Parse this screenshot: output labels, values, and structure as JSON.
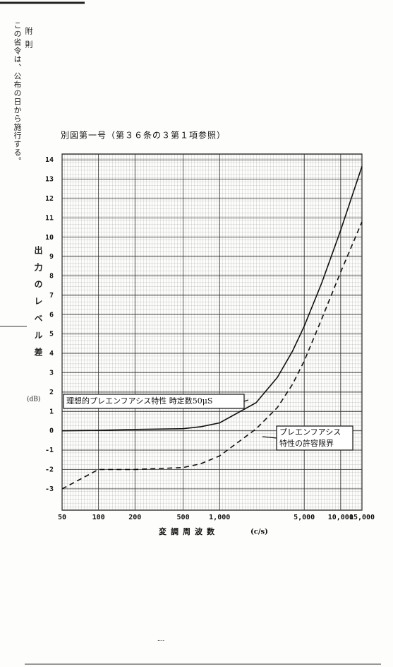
{
  "document": {
    "provision": "この省令は、公布の日から施行する。",
    "heading": "附則"
  },
  "chart_data": {
    "type": "line",
    "title": "別図第一号（第３６条の３第１項参照）",
    "x_label": "変調周波数",
    "x_unit": "(c/s)",
    "y_label": "出力のレベル差",
    "y_unit": "(dB)",
    "x": [
      50,
      100,
      200,
      500,
      700,
      1000,
      2000,
      3000,
      4000,
      5000,
      7000,
      10000,
      15000
    ],
    "series": [
      {
        "name": "理想的プレエンフアシス特性 時定数50μS",
        "color": "#111111",
        "dashed": false,
        "values": [
          0,
          0.02,
          0.07,
          0.11,
          0.21,
          0.41,
          1.45,
          2.76,
          4.11,
          5.4,
          7.66,
          10.36,
          13.66
        ]
      },
      {
        "name": "プレエンフアシス特性の許容限界",
        "color": "#111111",
        "dashed": true,
        "values": [
          -3,
          -2,
          -2,
          -1.9,
          -1.7,
          -1.3,
          0.1,
          1.2,
          2.4,
          3.6,
          5.8,
          8.2,
          10.8
        ]
      }
    ],
    "xscale": "log",
    "xlim": [
      50,
      15000
    ],
    "xticks": [
      50,
      100,
      200,
      500,
      {
        "value": 1000,
        "label": "1,000"
      },
      {
        "value": 5000,
        "label": "5,000"
      },
      {
        "value": 10000,
        "label": "10,000"
      },
      {
        "value": 15000,
        "label": "15,000"
      }
    ],
    "ylim": [
      -4.1,
      14.3
    ],
    "yticks": [
      -3,
      -2,
      -1,
      0,
      1,
      2,
      3,
      4,
      5,
      6,
      7,
      8,
      9,
      10,
      11,
      12,
      13,
      14
    ],
    "grid": true
  }
}
